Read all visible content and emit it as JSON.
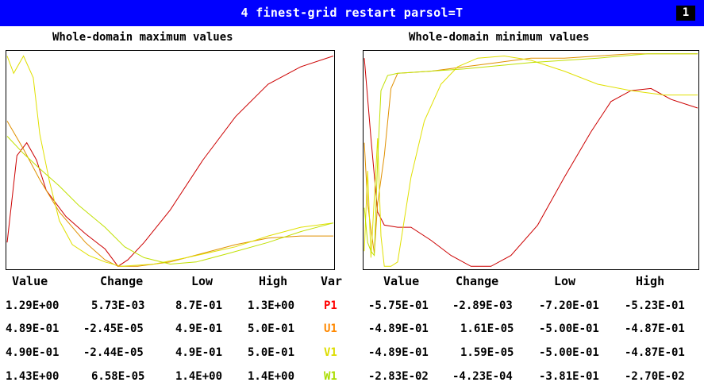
{
  "header": {
    "title": "4 finest-grid restart parsol=T",
    "page": "1"
  },
  "colors": {
    "title_bg": "#0000ff",
    "P1": "#ff0000",
    "U1": "#ff8800",
    "V1": "#dddd00",
    "W1": "#aadd00"
  },
  "chart_data": [
    {
      "type": "line",
      "title": "Whole-domain maximum values",
      "series": [
        {
          "name": "P1",
          "color": "#cc0000",
          "points": [
            [
              0,
              0.12
            ],
            [
              0.03,
              0.52
            ],
            [
              0.06,
              0.58
            ],
            [
              0.09,
              0.5
            ],
            [
              0.12,
              0.36
            ],
            [
              0.18,
              0.24
            ],
            [
              0.24,
              0.16
            ],
            [
              0.3,
              0.09
            ],
            [
              0.34,
              0.01
            ],
            [
              0.37,
              0.04
            ],
            [
              0.42,
              0.12
            ],
            [
              0.5,
              0.27
            ],
            [
              0.6,
              0.5
            ],
            [
              0.7,
              0.7
            ],
            [
              0.8,
              0.85
            ],
            [
              0.9,
              0.93
            ],
            [
              1,
              0.98
            ]
          ]
        },
        {
          "name": "U1",
          "color": "#e09000",
          "points": [
            [
              0,
              0.68
            ],
            [
              0.05,
              0.55
            ],
            [
              0.1,
              0.41
            ],
            [
              0.16,
              0.26
            ],
            [
              0.24,
              0.12
            ],
            [
              0.3,
              0.04
            ],
            [
              0.34,
              0.01
            ],
            [
              0.4,
              0.01
            ],
            [
              0.5,
              0.03
            ],
            [
              0.6,
              0.07
            ],
            [
              0.7,
              0.11
            ],
            [
              0.8,
              0.14
            ],
            [
              0.9,
              0.15
            ],
            [
              1,
              0.15
            ]
          ]
        },
        {
          "name": "V1",
          "color": "#e0e000",
          "points": [
            [
              0,
              0.98
            ],
            [
              0.02,
              0.9
            ],
            [
              0.05,
              0.98
            ],
            [
              0.08,
              0.88
            ],
            [
              0.1,
              0.62
            ],
            [
              0.13,
              0.4
            ],
            [
              0.16,
              0.22
            ],
            [
              0.2,
              0.11
            ],
            [
              0.25,
              0.06
            ],
            [
              0.3,
              0.03
            ],
            [
              0.35,
              0.01
            ],
            [
              0.45,
              0.02
            ],
            [
              0.55,
              0.05
            ],
            [
              0.7,
              0.1
            ],
            [
              0.8,
              0.15
            ],
            [
              0.9,
              0.19
            ],
            [
              1,
              0.21
            ]
          ]
        },
        {
          "name": "W1",
          "color": "#c0e000",
          "points": [
            [
              0,
              0.61
            ],
            [
              0.05,
              0.53
            ],
            [
              0.1,
              0.46
            ],
            [
              0.16,
              0.38
            ],
            [
              0.22,
              0.29
            ],
            [
              0.3,
              0.19
            ],
            [
              0.36,
              0.1
            ],
            [
              0.42,
              0.05
            ],
            [
              0.5,
              0.02
            ],
            [
              0.58,
              0.03
            ],
            [
              0.68,
              0.07
            ],
            [
              0.8,
              0.12
            ],
            [
              0.9,
              0.17
            ],
            [
              1,
              0.21
            ]
          ]
        }
      ]
    },
    {
      "type": "line",
      "title": "Whole-domain minimum values",
      "series": [
        {
          "name": "P1",
          "color": "#cc0000",
          "points": [
            [
              0,
              0.97
            ],
            [
              0.02,
              0.6
            ],
            [
              0.04,
              0.26
            ],
            [
              0.06,
              0.2
            ],
            [
              0.1,
              0.19
            ],
            [
              0.14,
              0.19
            ],
            [
              0.2,
              0.13
            ],
            [
              0.26,
              0.06
            ],
            [
              0.32,
              0.01
            ],
            [
              0.38,
              0.01
            ],
            [
              0.44,
              0.06
            ],
            [
              0.52,
              0.2
            ],
            [
              0.6,
              0.42
            ],
            [
              0.68,
              0.63
            ],
            [
              0.74,
              0.77
            ],
            [
              0.8,
              0.82
            ],
            [
              0.86,
              0.83
            ],
            [
              0.92,
              0.78
            ],
            [
              1,
              0.74
            ]
          ]
        },
        {
          "name": "U1",
          "color": "#e09000",
          "points": [
            [
              0,
              0.58
            ],
            [
              0.01,
              0.3
            ],
            [
              0.02,
              0.18
            ],
            [
              0.03,
              0.07
            ],
            [
              0.04,
              0.3
            ],
            [
              0.06,
              0.52
            ],
            [
              0.08,
              0.83
            ],
            [
              0.1,
              0.9
            ],
            [
              0.2,
              0.91
            ],
            [
              0.3,
              0.93
            ],
            [
              0.4,
              0.95
            ],
            [
              0.5,
              0.97
            ],
            [
              0.6,
              0.97
            ],
            [
              0.7,
              0.98
            ],
            [
              0.8,
              0.99
            ],
            [
              0.9,
              0.99
            ],
            [
              1,
              0.99
            ]
          ]
        },
        {
          "name": "V1",
          "color": "#e0e000",
          "points": [
            [
              0,
              0.08
            ],
            [
              0.01,
              0.45
            ],
            [
              0.02,
              0.05
            ],
            [
              0.04,
              0.6
            ],
            [
              0.05,
              0.15
            ],
            [
              0.06,
              0.01
            ],
            [
              0.08,
              0.01
            ],
            [
              0.1,
              0.03
            ],
            [
              0.14,
              0.42
            ],
            [
              0.18,
              0.68
            ],
            [
              0.23,
              0.85
            ],
            [
              0.28,
              0.93
            ],
            [
              0.34,
              0.97
            ],
            [
              0.42,
              0.98
            ],
            [
              0.5,
              0.96
            ],
            [
              0.6,
              0.91
            ],
            [
              0.7,
              0.85
            ],
            [
              0.8,
              0.82
            ],
            [
              0.9,
              0.8
            ],
            [
              1,
              0.8
            ]
          ]
        },
        {
          "name": "W1",
          "color": "#c0e000",
          "points": [
            [
              0,
              0.28
            ],
            [
              0.01,
              0.12
            ],
            [
              0.02,
              0.08
            ],
            [
              0.03,
              0.06
            ],
            [
              0.04,
              0.5
            ],
            [
              0.05,
              0.82
            ],
            [
              0.07,
              0.89
            ],
            [
              0.1,
              0.9
            ],
            [
              0.3,
              0.92
            ],
            [
              0.5,
              0.95
            ],
            [
              0.7,
              0.97
            ],
            [
              0.85,
              0.99
            ],
            [
              1,
              0.99
            ]
          ]
        }
      ]
    }
  ],
  "table": {
    "headers": {
      "value": "Value",
      "change": "Change",
      "low": "Low",
      "high": "High",
      "var": "Var"
    },
    "rows": [
      {
        "var": "P1",
        "max": {
          "value": "1.29E+00",
          "change": "5.73E-03",
          "low": "8.7E-01",
          "high": "1.3E+00"
        },
        "min": {
          "value": "-5.75E-01",
          "change": "-2.89E-03",
          "low": "-7.20E-01",
          "high": "-5.23E-01"
        }
      },
      {
        "var": "U1",
        "max": {
          "value": "4.89E-01",
          "change": "-2.45E-05",
          "low": "4.9E-01",
          "high": "5.0E-01"
        },
        "min": {
          "value": "-4.89E-01",
          "change": "1.61E-05",
          "low": "-5.00E-01",
          "high": "-4.87E-01"
        }
      },
      {
        "var": "V1",
        "max": {
          "value": "4.90E-01",
          "change": "-2.44E-05",
          "low": "4.9E-01",
          "high": "5.0E-01"
        },
        "min": {
          "value": "-4.89E-01",
          "change": "1.59E-05",
          "low": "-5.00E-01",
          "high": "-4.87E-01"
        }
      },
      {
        "var": "W1",
        "max": {
          "value": "1.43E+00",
          "change": "6.58E-05",
          "low": "1.4E+00",
          "high": "1.4E+00"
        },
        "min": {
          "value": "-2.83E-02",
          "change": "-4.23E-04",
          "low": "-3.81E-01",
          "high": "-2.70E-02"
        }
      }
    ]
  }
}
